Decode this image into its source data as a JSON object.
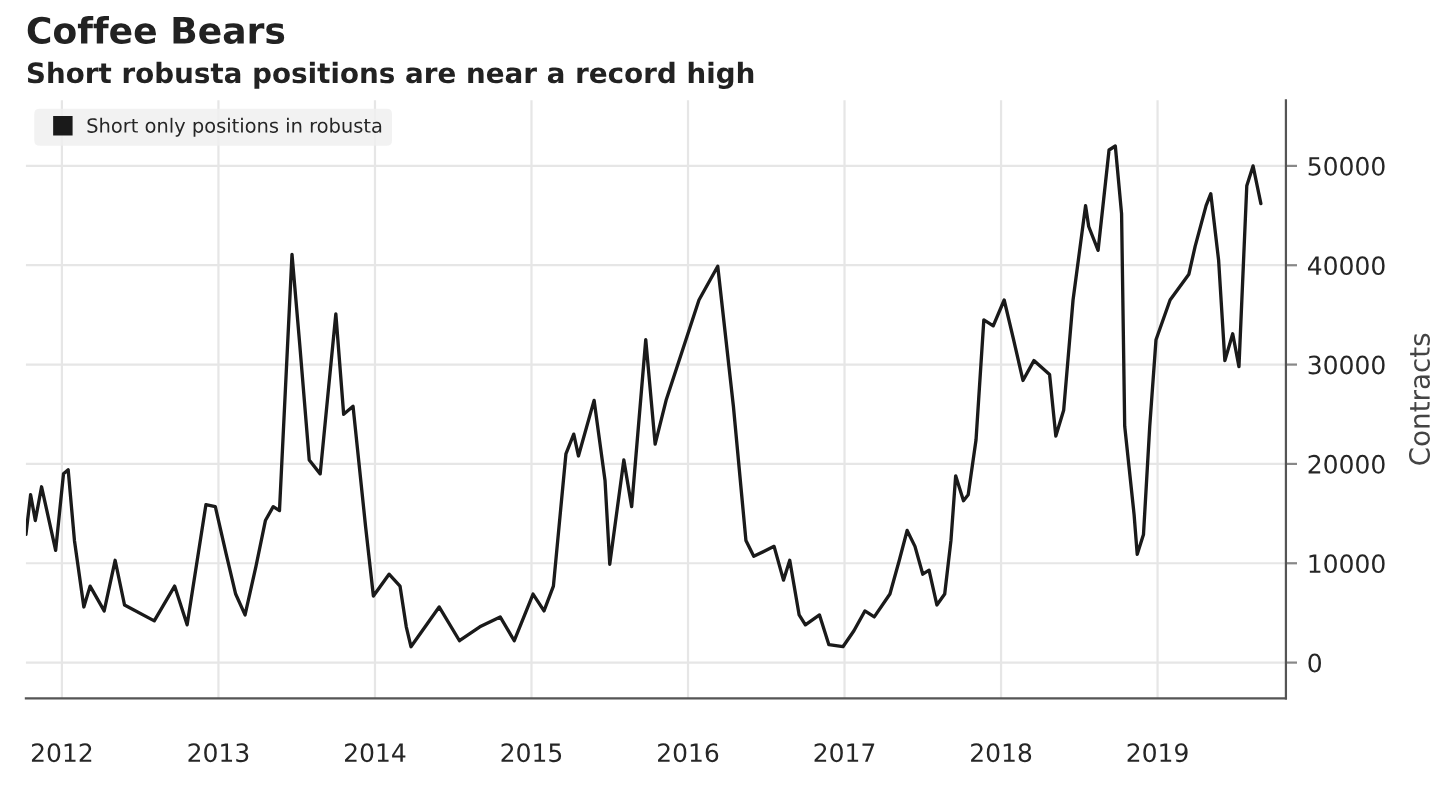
{
  "chart_data": {
    "type": "line",
    "title": "Coffee Bears",
    "subtitle": "Short robusta positions are near a record high",
    "ylabel": "Contracts",
    "x": [
      2011.77,
      2011.8,
      2011.83,
      2011.87,
      2011.96,
      2012.01,
      2012.04,
      2012.08,
      2012.14,
      2012.18,
      2012.27,
      2012.34,
      2012.4,
      2012.59,
      2012.72,
      2012.8,
      2012.92,
      2012.98,
      2013.05,
      2013.11,
      2013.17,
      2013.24,
      2013.3,
      2013.35,
      2013.39,
      2013.47,
      2013.52,
      2013.58,
      2013.65,
      2013.75,
      2013.8,
      2013.86,
      2013.94,
      2013.99,
      2014.09,
      2014.16,
      2014.2,
      2014.23,
      2014.41,
      2014.54,
      2014.67,
      2014.8,
      2014.89,
      2015.01,
      2015.08,
      2015.14,
      2015.22,
      2015.27,
      2015.3,
      2015.4,
      2015.47,
      2015.5,
      2015.59,
      2015.64,
      2015.73,
      2015.79,
      2015.86,
      2016.07,
      2016.19,
      2016.29,
      2016.37,
      2016.42,
      2016.55,
      2016.61,
      2016.65,
      2016.71,
      2016.75,
      2016.84,
      2016.9,
      2016.99,
      2017.06,
      2017.13,
      2017.19,
      2017.29,
      2017.35,
      2017.4,
      2017.45,
      2017.5,
      2017.54,
      2017.59,
      2017.64,
      2017.68,
      2017.71,
      2017.76,
      2017.79,
      2017.84,
      2017.89,
      2017.95,
      2018.02,
      2018.08,
      2018.14,
      2018.21,
      2018.31,
      2018.35,
      2018.4,
      2018.46,
      2018.54,
      2018.56,
      2018.62,
      2018.69,
      2018.73,
      2018.77,
      2018.79,
      2018.85,
      2018.87,
      2018.91,
      2018.95,
      2018.99,
      2019.08,
      2019.2,
      2019.24,
      2019.31,
      2019.34,
      2019.39,
      2019.43,
      2019.48,
      2019.52,
      2019.57,
      2019.61,
      2019.66
    ],
    "series": [
      {
        "name": "Short only positions in robusta",
        "color": "#1a1a1a",
        "values": [
          12900,
          16900,
          14300,
          17700,
          11300,
          19000,
          19400,
          12300,
          5600,
          7700,
          5200,
          10300,
          5800,
          4200,
          7700,
          3800,
          15900,
          15700,
          10900,
          6900,
          4800,
          9700,
          14300,
          15700,
          15300,
          41100,
          31900,
          20400,
          19000,
          35100,
          25000,
          25800,
          13700,
          6700,
          8900,
          7700,
          3600,
          1600,
          5600,
          2200,
          3600,
          4600,
          2200,
          6900,
          5200,
          7700,
          21000,
          23000,
          20800,
          26400,
          18300,
          9900,
          20400,
          15700,
          32500,
          22000,
          26400,
          36500,
          39900,
          25800,
          12300,
          10700,
          11700,
          8300,
          10300,
          4800,
          3800,
          4800,
          1800,
          1600,
          3200,
          5200,
          4600,
          6900,
          10300,
          13300,
          11700,
          8900,
          9300,
          5800,
          6900,
          12300,
          18800,
          16300,
          16900,
          22400,
          34500,
          33900,
          36500,
          32500,
          28400,
          30400,
          29000,
          22800,
          25400,
          36500,
          46000,
          43900,
          41500,
          51600,
          52000,
          45200,
          23800,
          14900,
          10900,
          12900,
          23800,
          32500,
          36500,
          39100,
          41900,
          46000,
          47200,
          40500,
          30400,
          33100,
          29800,
          48000,
          50000,
          46200
        ]
      }
    ],
    "xlim": [
      2011.77,
      2019.82
    ],
    "xticks": [
      {
        "value": 2012,
        "label": "2012"
      },
      {
        "value": 2013,
        "label": "2013"
      },
      {
        "value": 2014,
        "label": "2014"
      },
      {
        "value": 2015,
        "label": "2015"
      },
      {
        "value": 2016,
        "label": "2016"
      },
      {
        "value": 2017,
        "label": "2017"
      },
      {
        "value": 2018,
        "label": "2018"
      },
      {
        "value": 2019,
        "label": "2019"
      }
    ],
    "ylim": [
      -3600,
      56600
    ],
    "yticks": [
      0,
      10000,
      20000,
      30000,
      40000,
      50000
    ],
    "grid": true,
    "legend": "top left",
    "line_style": "solid",
    "marker": "none"
  }
}
